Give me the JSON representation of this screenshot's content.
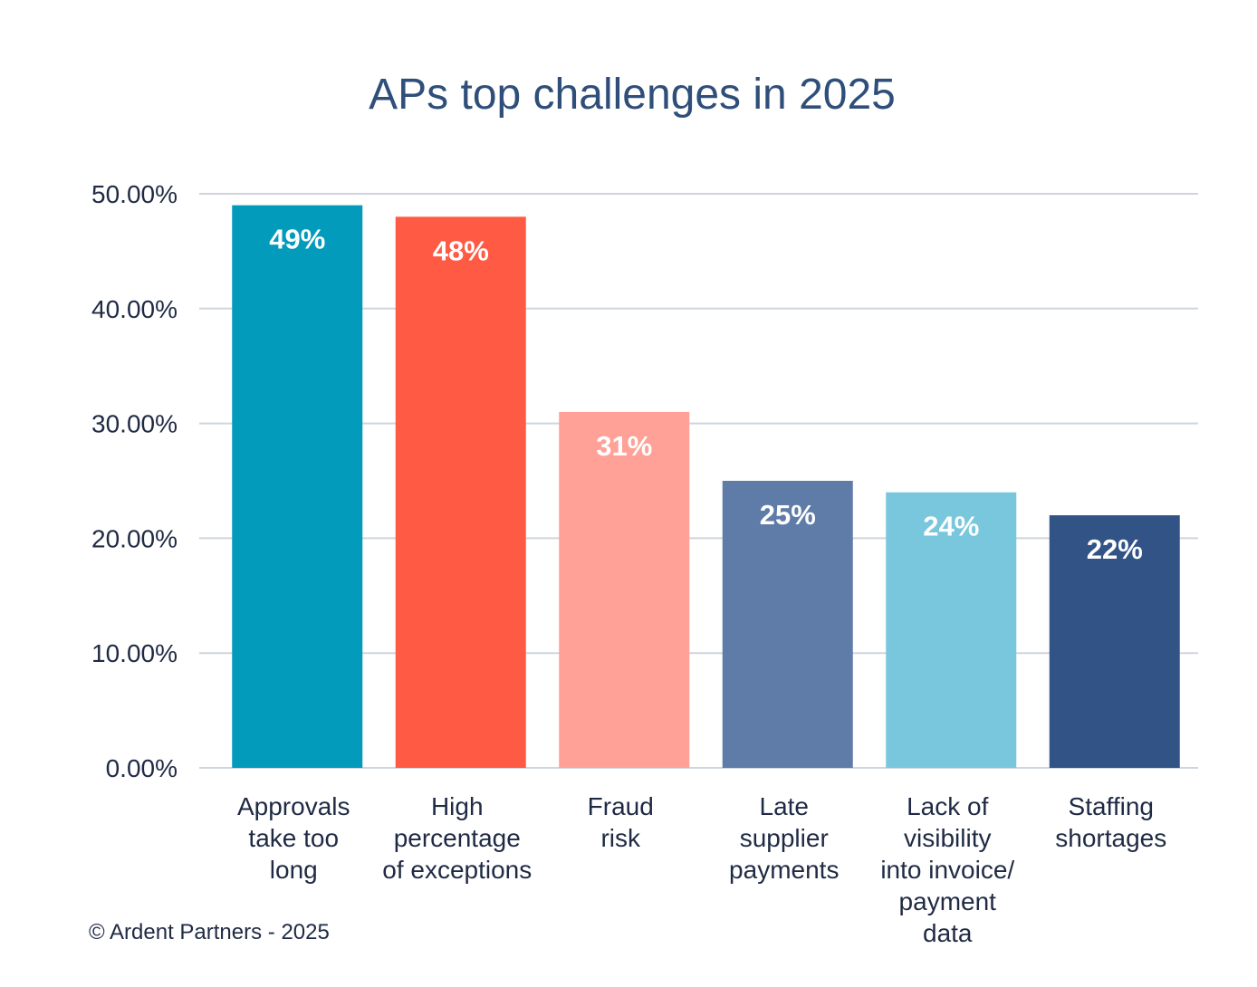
{
  "chart_data": {
    "type": "bar",
    "title": "APs top challenges in 2025",
    "xlabel": "",
    "ylabel": "",
    "ylim": [
      0,
      50
    ],
    "yticks": [
      "0.00%",
      "10.00%",
      "20.00%",
      "30.00%",
      "40.00%",
      "50.00%"
    ],
    "grid": true,
    "categories": [
      [
        "Approvals",
        "take too",
        "long"
      ],
      [
        "High",
        "percentage",
        "of exceptions"
      ],
      [
        "Fraud",
        "risk"
      ],
      [
        "Late",
        "supplier",
        "payments"
      ],
      [
        "Lack of",
        "visibility",
        "into invoice/",
        "payment",
        "data"
      ],
      [
        "Staffing",
        "shortages"
      ]
    ],
    "values": [
      49,
      48,
      31,
      25,
      24,
      22
    ],
    "data_labels": [
      "49%",
      "48%",
      "31%",
      "25%",
      "24%",
      "22%"
    ],
    "colors": [
      "#039bbb",
      "#ff5b44",
      "#ffa196",
      "#5f7ba8",
      "#78c7dc",
      "#315386"
    ]
  },
  "footer": {
    "copyright": "© Ardent Partners - 2025"
  }
}
